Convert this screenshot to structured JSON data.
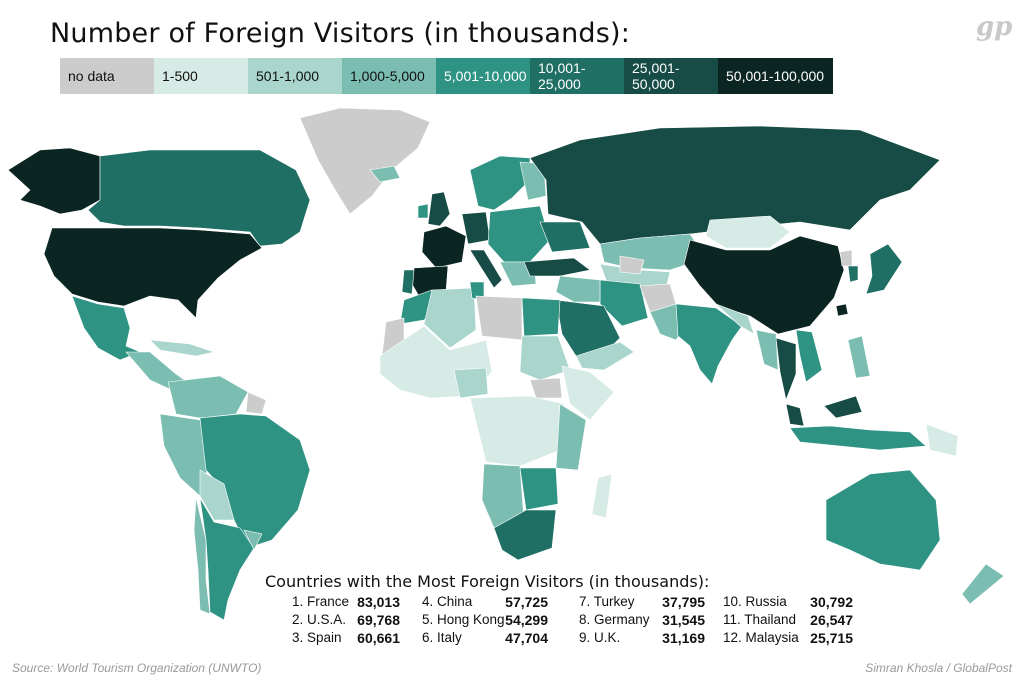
{
  "title": "Number of Foreign Visitors (in thousands):",
  "logo": "gp",
  "legend": [
    {
      "label": "no data",
      "color": "#cccccc",
      "text_color": "#111111"
    },
    {
      "label": "1-500",
      "color": "#d6eae6",
      "text_color": "#111111"
    },
    {
      "label": "501-1,000",
      "color": "#a9d5cc",
      "text_color": "#111111"
    },
    {
      "label": "1,000-5,000",
      "color": "#7cbdb2",
      "text_color": "#111111"
    },
    {
      "label": "5,001-10,000",
      "color": "#2e9383",
      "text_color": "#ffffff"
    },
    {
      "label": "10,001-25,000",
      "color": "#206f65",
      "text_color": "#ffffff"
    },
    {
      "label": "25,001-50,000",
      "color": "#164c45",
      "text_color": "#ffffff"
    },
    {
      "label": "50,001-100,000",
      "color": "#0b2622",
      "text_color": "#ffffff"
    }
  ],
  "rankings_title": "Countries with the Most Foreign Visitors (in thousands):",
  "rankings": [
    {
      "name": "1. France",
      "value": "83,013"
    },
    {
      "name": "2. U.S.A.",
      "value": "69,768"
    },
    {
      "name": "3. Spain",
      "value": "60,661"
    },
    {
      "name": "4. China",
      "value": "57,725"
    },
    {
      "name": "5. Hong Kong",
      "value": "54,299"
    },
    {
      "name": "6. Italy",
      "value": "47,704"
    },
    {
      "name": "7. Turkey",
      "value": "37,795"
    },
    {
      "name": "8. Germany",
      "value": "31,545"
    },
    {
      "name": "9. U.K.",
      "value": "31,169"
    },
    {
      "name": "10. Russia",
      "value": "30,792"
    },
    {
      "name": "11. Thailand",
      "value": "26,547"
    },
    {
      "name": "12. Malaysia",
      "value": "25,715"
    }
  ],
  "source": "Source: World Tourism Organization (UNWTO)",
  "credit": "Simran Khosla / GlobalPost"
}
